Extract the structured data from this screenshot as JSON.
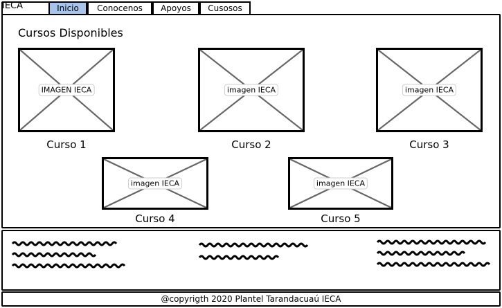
{
  "app": {
    "brand": "IECA"
  },
  "nav": {
    "tabs": [
      {
        "label": "Inicio",
        "active": true
      },
      {
        "label": "Conocenos",
        "active": false
      },
      {
        "label": "Apoyos",
        "active": false
      },
      {
        "label": "Cusosos",
        "active": false
      }
    ]
  },
  "main": {
    "title": "Cursos Disponibles",
    "courses": [
      {
        "image_label": "IMAGEN IECA",
        "caption": "Curso 1"
      },
      {
        "image_label": "imagen IECA",
        "caption": "Curso 2"
      },
      {
        "image_label": "imagen IECA",
        "caption": "Curso 3"
      },
      {
        "image_label": "imagen IECA",
        "caption": "Curso 4"
      },
      {
        "image_label": "imagen IECA",
        "caption": "Curso 5"
      }
    ]
  },
  "footer": {
    "copyright": "@copyrigth 2020 Plantel Tarandacuaú IECA"
  },
  "colors": {
    "active_tab": "#a8c4ea",
    "border": "#000000",
    "placeholder_x": "#666666"
  }
}
